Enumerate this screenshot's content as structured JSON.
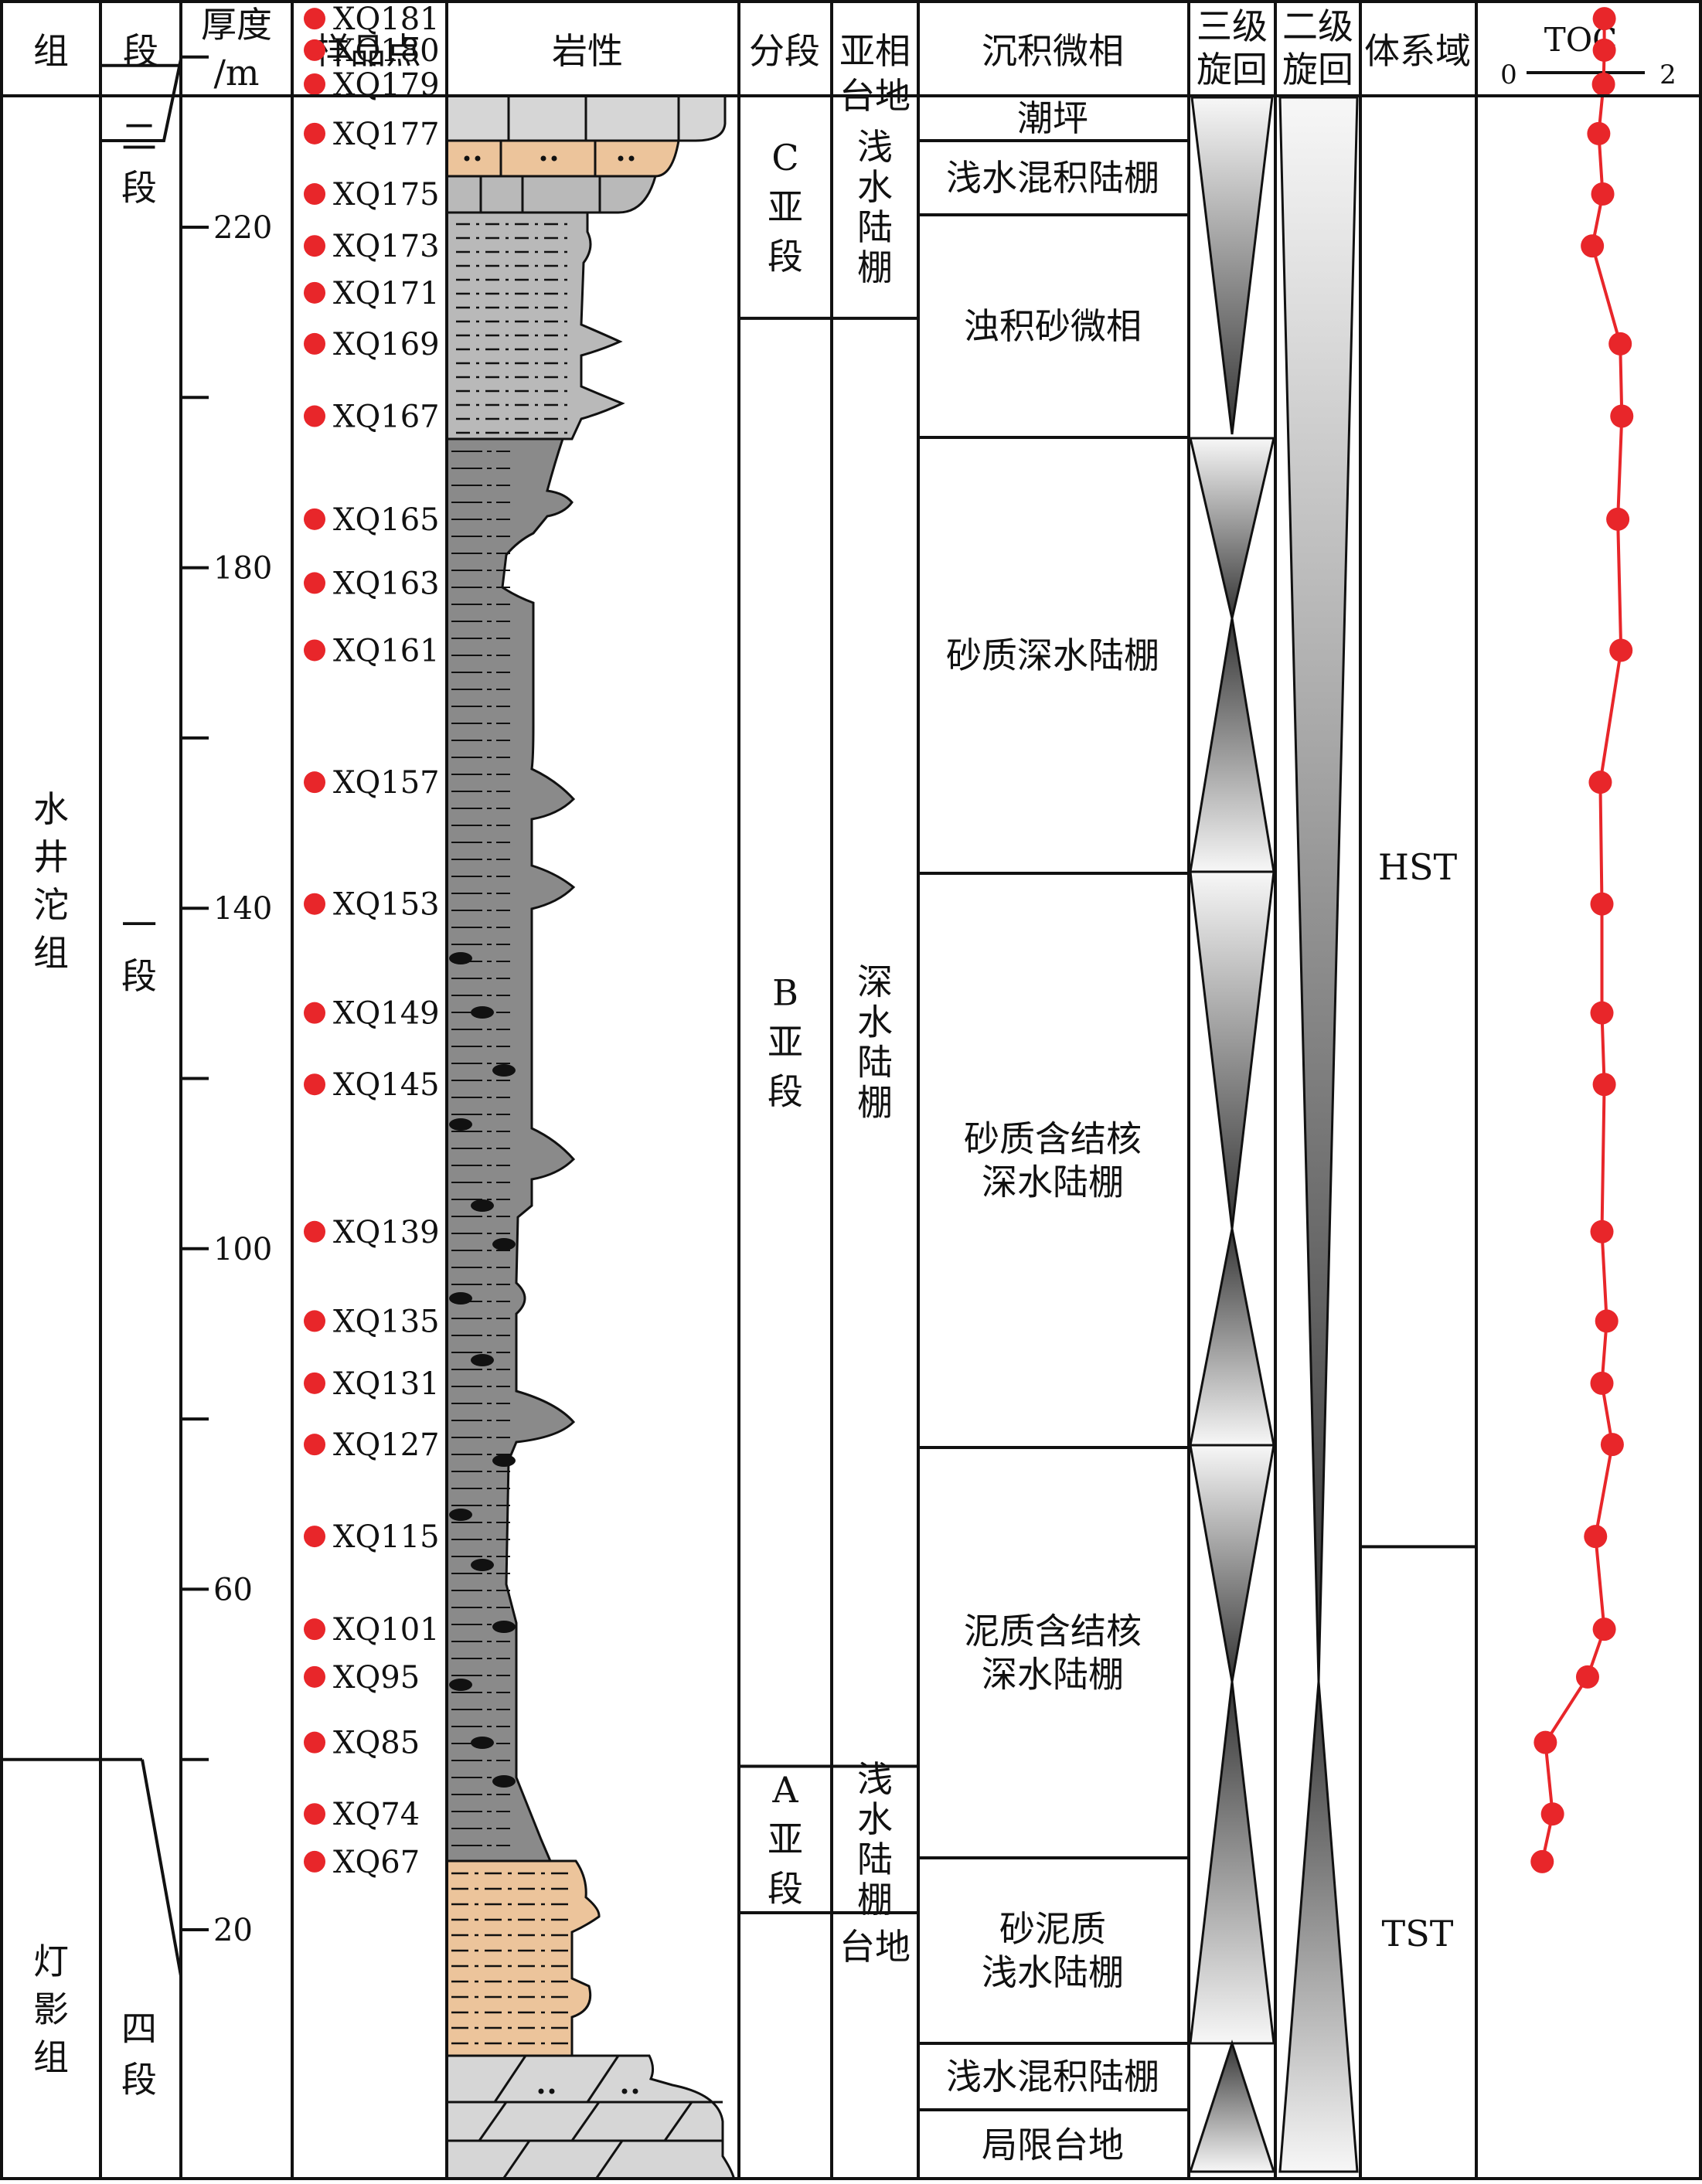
{
  "headers": {
    "formation": "组",
    "member": "段",
    "thickness": "厚度",
    "thickness_unit": "/m",
    "samples": "样品点",
    "lithology": "岩性",
    "subsection": "分段",
    "subfacies": "亚相",
    "microfacies": "沉积微相",
    "cycle3": [
      "三级",
      "旋回"
    ],
    "cycle2": [
      "二级",
      "旋回"
    ],
    "systems_tract": "体系域",
    "toc": "TOC",
    "toc_min": "0",
    "toc_max": "2"
  },
  "formations": [
    {
      "name": [
        "水",
        "井",
        "沱",
        "组"
      ],
      "top": 0,
      "base": 40
    },
    {
      "name": [
        "灯",
        "影",
        "组"
      ],
      "top": 40,
      "base": 14
    }
  ],
  "members": [
    {
      "name": [
        "二",
        "段"
      ],
      "top": 0,
      "base": 239
    },
    {
      "name": [
        "一",
        "段"
      ],
      "top": 239,
      "base": 40
    },
    {
      "name": [
        "四",
        "段"
      ],
      "top": 40,
      "base": 14
    }
  ],
  "thickness_axis": {
    "labeled_ticks": [
      20,
      60,
      100,
      140,
      180,
      220
    ],
    "minor_ticks": [
      40,
      80,
      120,
      160,
      200,
      240
    ],
    "min": 14,
    "max": 251
  },
  "samples": [
    {
      "id": "XQ181",
      "depth": 244.5
    },
    {
      "id": "XQ180",
      "depth": 240.8
    },
    {
      "id": "XQ179",
      "depth": 236.8
    },
    {
      "id": "XQ177",
      "depth": 231.0
    },
    {
      "id": "XQ175",
      "depth": 223.9
    },
    {
      "id": "XQ173",
      "depth": 217.8
    },
    {
      "id": "XQ171",
      "depth": 212.3
    },
    {
      "id": "XQ169",
      "depth": 206.3
    },
    {
      "id": "XQ167",
      "depth": 197.8
    },
    {
      "id": "XQ165",
      "depth": 185.7
    },
    {
      "id": "XQ163",
      "depth": 178.2
    },
    {
      "id": "XQ161",
      "depth": 170.3
    },
    {
      "id": "XQ157",
      "depth": 154.8
    },
    {
      "id": "XQ153",
      "depth": 140.5
    },
    {
      "id": "XQ149",
      "depth": 127.7
    },
    {
      "id": "XQ145",
      "depth": 119.3
    },
    {
      "id": "XQ139",
      "depth": 102.0
    },
    {
      "id": "XQ135",
      "depth": 91.5
    },
    {
      "id": "XQ131",
      "depth": 84.2
    },
    {
      "id": "XQ127",
      "depth": 77.0
    },
    {
      "id": "XQ115",
      "depth": 66.2
    },
    {
      "id": "XQ101",
      "depth": 55.3
    },
    {
      "id": "XQ95",
      "depth": 49.7
    },
    {
      "id": "XQ85",
      "depth": 42.0
    },
    {
      "id": "XQ74",
      "depth": 33.6
    },
    {
      "id": "XQ67",
      "depth": 28.0
    }
  ],
  "subsections": [
    {
      "name": [],
      "top": 251,
      "base": 244.3
    },
    {
      "name": [
        "C",
        "亚",
        "段"
      ],
      "top": 244.3,
      "base": 209.3
    },
    {
      "name": [
        "B",
        "亚",
        "段"
      ],
      "top": 209.3,
      "base": 39.2
    },
    {
      "name": [
        "A",
        "亚",
        "段"
      ],
      "top": 39.2,
      "base": 22.0
    },
    {
      "name": [],
      "top": 22.0,
      "base": 14
    }
  ],
  "subfacies": [
    {
      "name": [
        "台地"
      ],
      "top": 251,
      "base": 244.3
    },
    {
      "name": [
        "浅",
        "水",
        "陆",
        "棚"
      ],
      "top": 244.3,
      "base": 209.3
    },
    {
      "name": [
        "深",
        "水",
        "陆",
        "棚"
      ],
      "top": 209.3,
      "base": 39.2
    },
    {
      "name": [
        "浅",
        "水",
        "陆",
        "棚"
      ],
      "top": 39.2,
      "base": 22.0
    },
    {
      "name": [
        "台地"
      ],
      "top": 22.0,
      "base": 14
    }
  ],
  "microfacies": [
    {
      "name": [
        "潮坪"
      ],
      "top": 251,
      "base": 245.6
    },
    {
      "name": [
        "浅水混积陆棚"
      ],
      "top": 245.6,
      "base": 237.0
    },
    {
      "name": [
        "浊积砂微相"
      ],
      "top": 237.0,
      "base": 209.3
    },
    {
      "name": [
        "砂质深水陆棚"
      ],
      "top": 209.3,
      "base": 157.3
    },
    {
      "name": [
        "砂质含结核",
        "深水陆棚"
      ],
      "top": 157.3,
      "base": 88.7
    },
    {
      "name": [
        "泥质含结核",
        "深水陆棚"
      ],
      "top": 88.7,
      "base": 39.2
    },
    {
      "name": [
        "砂泥质",
        "浅水陆棚"
      ],
      "top": 39.2,
      "base": 17.0
    },
    {
      "name": [
        "浅水混积陆棚"
      ],
      "top": 17.0,
      "base": 22.0
    },
    {
      "name": [
        "局限台地"
      ],
      "top": 22.0,
      "base": 14
    }
  ],
  "systems_tracts": [
    {
      "name": "HST",
      "top": 251,
      "base": 65.0
    },
    {
      "name": "TST",
      "top": 65.0,
      "base": 14
    }
  ],
  "toc_data": {
    "type": "line",
    "color": "#e8262a",
    "xlim": [
      0,
      2
    ],
    "points": [
      {
        "depth": 244.5,
        "toc": 1.2
      },
      {
        "depth": 240.8,
        "toc": 1.2
      },
      {
        "depth": 236.8,
        "toc": 1.19
      },
      {
        "depth": 231.0,
        "toc": 1.13
      },
      {
        "depth": 223.9,
        "toc": 1.18
      },
      {
        "depth": 217.8,
        "toc": 1.05
      },
      {
        "depth": 206.3,
        "toc": 1.4
      },
      {
        "depth": 197.8,
        "toc": 1.42
      },
      {
        "depth": 185.7,
        "toc": 1.37
      },
      {
        "depth": 170.3,
        "toc": 1.41
      },
      {
        "depth": 154.8,
        "toc": 1.15
      },
      {
        "depth": 140.5,
        "toc": 1.17
      },
      {
        "depth": 127.7,
        "toc": 1.17
      },
      {
        "depth": 119.3,
        "toc": 1.2
      },
      {
        "depth": 102.0,
        "toc": 1.17
      },
      {
        "depth": 91.5,
        "toc": 1.23
      },
      {
        "depth": 84.2,
        "toc": 1.17
      },
      {
        "depth": 77.0,
        "toc": 1.3
      },
      {
        "depth": 66.2,
        "toc": 1.09
      },
      {
        "depth": 55.3,
        "toc": 1.2
      },
      {
        "depth": 49.7,
        "toc": 0.99
      },
      {
        "depth": 42.0,
        "toc": 0.46
      },
      {
        "depth": 33.6,
        "toc": 0.55
      },
      {
        "depth": 28.0,
        "toc": 0.42
      }
    ]
  },
  "colors": {
    "line": "#111111",
    "dark_shale": "#8a8a8a",
    "light_siltstone": "#b9b9b9",
    "pale_grey": "#d6d6d6",
    "tan_sand": "#ecc49b",
    "nodule": "#111111",
    "sample_dot": "#e8262a",
    "toc_line": "#e8262a"
  }
}
